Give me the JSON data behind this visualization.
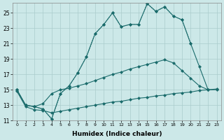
{
  "xlabel": "Humidex (Indice chaleur)",
  "background_color": "#cce8e8",
  "grid_color": "#aacccc",
  "line_color": "#1a6b6b",
  "ylim": [
    11,
    26
  ],
  "xlim": [
    -0.5,
    23.5
  ],
  "yticks": [
    11,
    13,
    15,
    17,
    19,
    21,
    23,
    25
  ],
  "xticks": [
    0,
    1,
    2,
    3,
    4,
    5,
    6,
    7,
    8,
    9,
    10,
    11,
    12,
    13,
    14,
    15,
    16,
    17,
    18,
    19,
    20,
    21,
    22,
    23
  ],
  "line1_x": [
    0,
    1,
    2,
    3,
    4,
    5,
    6,
    7,
    8,
    9,
    10,
    11,
    12,
    13,
    14,
    15,
    16,
    17,
    18,
    19,
    20
  ],
  "line1_y": [
    15.0,
    13.0,
    12.8,
    12.5,
    11.2,
    14.5,
    15.5,
    17.2,
    19.3,
    22.3,
    23.5,
    25.0,
    23.2,
    23.5,
    23.5,
    26.2,
    25.2,
    25.8,
    24.6,
    24.1,
    21.0
  ],
  "line2_x": [
    0,
    1,
    2,
    3,
    4,
    5,
    6,
    7,
    8,
    9,
    10,
    11,
    12,
    13,
    14,
    15,
    16,
    17,
    18,
    19,
    20,
    21,
    22
  ],
  "line2_y": [
    15.0,
    13.0,
    12.8,
    12.5,
    11.2,
    14.5,
    15.5,
    17.2,
    19.3,
    22.3,
    23.5,
    25.0,
    23.2,
    23.5,
    23.5,
    26.2,
    25.2,
    25.8,
    24.6,
    24.1,
    21.0,
    18.0,
    15.0
  ],
  "line3_x": [
    0,
    1,
    2,
    3,
    4,
    5,
    6,
    7,
    8,
    9,
    10,
    11,
    12,
    13,
    14,
    15,
    16,
    17,
    18,
    19,
    20,
    21,
    22,
    23
  ],
  "line3_y": [
    15.0,
    13.0,
    12.8,
    13.2,
    14.5,
    15.0,
    15.2,
    15.5,
    15.8,
    16.2,
    16.6,
    17.0,
    17.3,
    17.7,
    18.0,
    18.3,
    18.6,
    18.9,
    18.5,
    17.5,
    16.5,
    15.5,
    15.0,
    15.0
  ],
  "line4_x": [
    0,
    1,
    2,
    3,
    4,
    5,
    6,
    7,
    8,
    9,
    10,
    11,
    12,
    13,
    14,
    15,
    16,
    17,
    18,
    19,
    20,
    21,
    22,
    23
  ],
  "line4_y": [
    14.8,
    12.8,
    12.4,
    12.3,
    12.0,
    12.2,
    12.4,
    12.6,
    12.8,
    13.0,
    13.2,
    13.4,
    13.5,
    13.7,
    13.9,
    14.0,
    14.2,
    14.3,
    14.5,
    14.6,
    14.7,
    14.9,
    15.0,
    15.1
  ]
}
